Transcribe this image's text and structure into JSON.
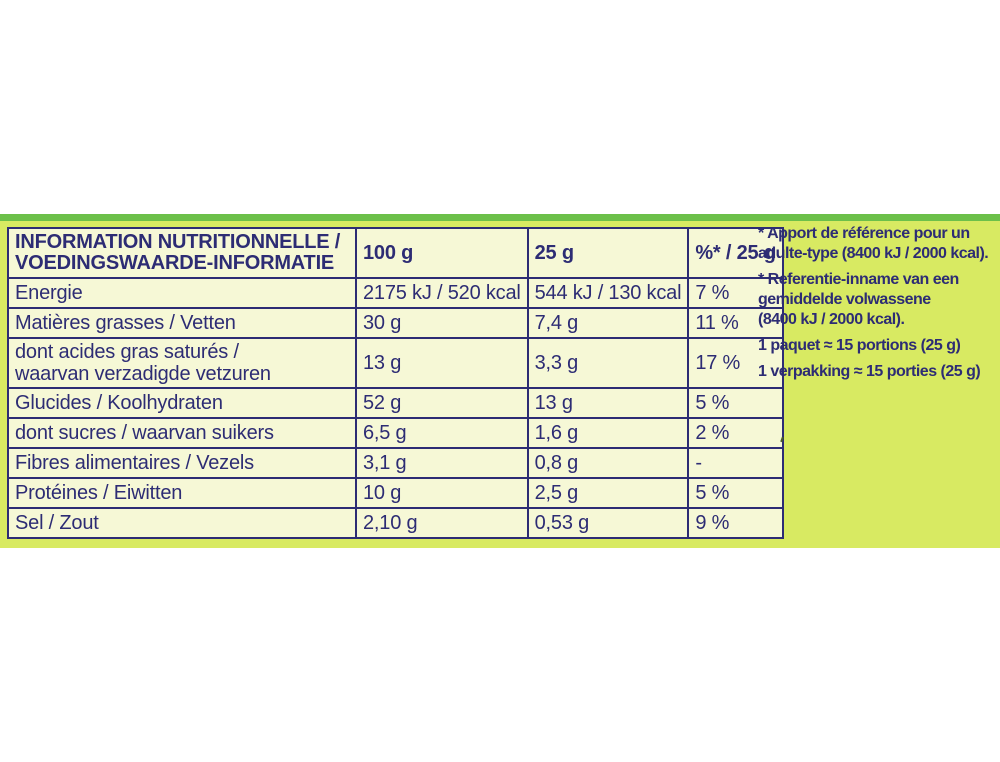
{
  "header": {
    "nutrient_title_line1": "INFORMATION NUTRITIONNELLE /",
    "nutrient_title_line2": "VOEDINGSWAARDE-INFORMATIE",
    "per_100g": "100 g",
    "per_portion": "25 g",
    "ri_percent": "%* / 25 g"
  },
  "rows": [
    {
      "name": "Energie",
      "per_100g": "2175 kJ / 520 kcal",
      "per_portion": "544 kJ / 130 kcal",
      "ri": "7 %"
    },
    {
      "name": "Matières grasses / Vetten",
      "per_100g": "30 g",
      "per_portion": "7,4 g",
      "ri": "11 %"
    },
    {
      "name_line1": "dont acides gras saturés /",
      "name_line2": "waarvan verzadigde vetzuren",
      "per_100g": "13 g",
      "per_portion": "3,3 g",
      "ri": "17 %"
    },
    {
      "name": "Glucides / Koolhydraten",
      "per_100g": "52 g",
      "per_portion": "13 g",
      "ri": "5 %"
    },
    {
      "name": "dont sucres / waarvan suikers",
      "per_100g": "6,5 g",
      "per_portion": "1,6 g",
      "ri": "2 %"
    },
    {
      "name": "Fibres alimentaires / Vezels",
      "per_100g": "3,1 g",
      "per_portion": "0,8 g",
      "ri": "-"
    },
    {
      "name": "Protéines / Eiwitten",
      "per_100g": "10 g",
      "per_portion": "2,5 g",
      "ri": "5 %"
    },
    {
      "name": "Sel / Zout",
      "per_100g": "2,10 g",
      "per_portion": "0,53 g",
      "ri": "9 %"
    }
  ],
  "side_notes": {
    "fr_ref_line1": "* Apport de référence pour un",
    "fr_ref_line2": "adulte-type (8400 kJ / 2000 kcal).",
    "nl_ref_line1": "* Referentie-inname van een",
    "nl_ref_line2": "gemiddelde volwassene",
    "nl_ref_line3": "(8400 kJ / 2000 kcal).",
    "fr_portions": "1 paquet ≈ 15 portions (25 g)",
    "nl_portions": "1 verpakking ≈ 15 porties (25 g)"
  },
  "colors": {
    "panel_green": "#d8ea62",
    "stripe_green": "#6cc04a",
    "ink_navy": "#2d2c74",
    "table_bg": "#f6f8d6"
  }
}
